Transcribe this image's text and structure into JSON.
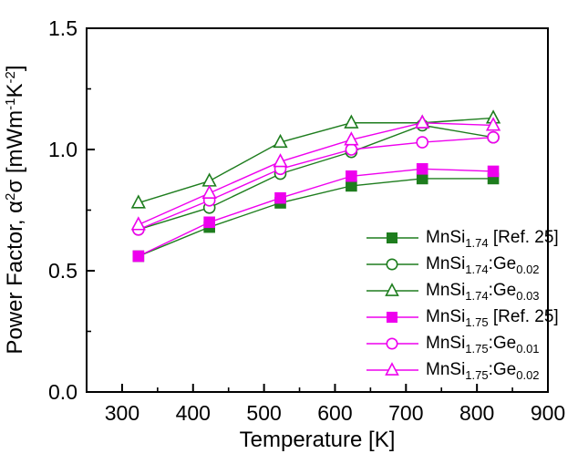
{
  "chart_data": {
    "type": "line",
    "title": "",
    "xlabel": "Temperature [K]",
    "ylabel": "Power Factor, α2σ [mWm-1K-2]",
    "ylabel_parts": [
      {
        "t": "Power Factor, α"
      },
      {
        "t": "2",
        "sup": true
      },
      {
        "t": "σ [mWm"
      },
      {
        "t": "-1",
        "sup": true
      },
      {
        "t": "K"
      },
      {
        "t": "-2",
        "sup": true
      },
      {
        "t": "]"
      }
    ],
    "xlim": [
      250,
      900
    ],
    "ylim": [
      0,
      1.5
    ],
    "x_tick_values": [
      300,
      400,
      500,
      600,
      700,
      800,
      900
    ],
    "x_tick_labels": [
      "300",
      "400",
      "500",
      "600",
      "700",
      "800",
      "900"
    ],
    "x_minor_step": 50,
    "y_tick_values": [
      0,
      0.5,
      1.0,
      1.5
    ],
    "y_tick_labels": [
      "0.0",
      "0.5",
      "1.0",
      "1.5"
    ],
    "y_minor_step": 0.25,
    "grid": false,
    "legend_position": "inside-bottom-right",
    "colors": {
      "green": "#1e7d1e",
      "magenta": "#ee00ee",
      "axis": "#000000",
      "open_marker_fill": "#ffffff"
    },
    "x": [
      323,
      423,
      523,
      623,
      723,
      823
    ],
    "series": [
      {
        "name": "MnSi1.74 [Ref. 25]",
        "label_parts": [
          {
            "t": "MnSi"
          },
          {
            "t": "1.74",
            "sub": true
          },
          {
            "t": " [Ref. 25]"
          }
        ],
        "marker": "square",
        "fill": "filled",
        "color": "#1e7d1e",
        "values": [
          0.56,
          0.68,
          0.78,
          0.85,
          0.88,
          0.88
        ]
      },
      {
        "name": "MnSi1.74:Ge0.02",
        "label_parts": [
          {
            "t": "MnSi"
          },
          {
            "t": "1.74",
            "sub": true
          },
          {
            "t": ":Ge"
          },
          {
            "t": "0.02",
            "sub": true
          }
        ],
        "marker": "circle",
        "fill": "open",
        "color": "#1e7d1e",
        "values": [
          0.67,
          0.76,
          0.9,
          0.99,
          1.1,
          1.05
        ]
      },
      {
        "name": "MnSi1.74:Ge0.03",
        "label_parts": [
          {
            "t": "MnSi"
          },
          {
            "t": "1.74",
            "sub": true
          },
          {
            "t": ":Ge"
          },
          {
            "t": "0.03",
            "sub": true
          }
        ],
        "marker": "triangle",
        "fill": "open",
        "color": "#1e7d1e",
        "values": [
          0.78,
          0.87,
          1.03,
          1.11,
          1.11,
          1.13
        ]
      },
      {
        "name": "MnSi1.75 [Ref. 25]",
        "label_parts": [
          {
            "t": "MnSi"
          },
          {
            "t": "1.75",
            "sub": true
          },
          {
            "t": " [Ref. 25]"
          }
        ],
        "marker": "square",
        "fill": "filled",
        "color": "#ee00ee",
        "values": [
          0.56,
          0.7,
          0.8,
          0.89,
          0.92,
          0.91
        ]
      },
      {
        "name": "MnSi1.75:Ge0.01",
        "label_parts": [
          {
            "t": "MnSi"
          },
          {
            "t": "1.75",
            "sub": true
          },
          {
            "t": ":Ge"
          },
          {
            "t": "0.01",
            "sub": true
          }
        ],
        "marker": "circle",
        "fill": "open",
        "color": "#ee00ee",
        "values": [
          0.67,
          0.79,
          0.92,
          1.0,
          1.03,
          1.05
        ]
      },
      {
        "name": "MnSi1.75:Ge0.02",
        "label_parts": [
          {
            "t": "MnSi"
          },
          {
            "t": "1.75",
            "sub": true
          },
          {
            "t": ":Ge"
          },
          {
            "t": "0.02",
            "sub": true
          }
        ],
        "marker": "triangle",
        "fill": "open",
        "color": "#ee00ee",
        "values": [
          0.69,
          0.82,
          0.95,
          1.04,
          1.11,
          1.1
        ]
      }
    ]
  }
}
